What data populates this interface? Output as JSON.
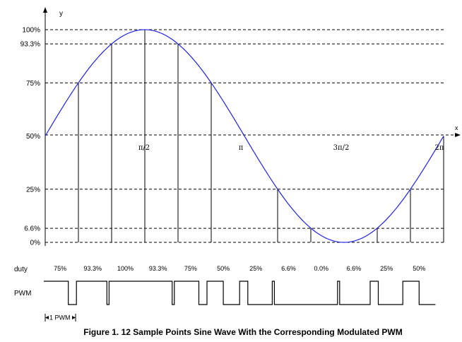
{
  "axes": {
    "y_label": "y",
    "x_label": "x"
  },
  "y_levels": [
    {
      "label": "100%",
      "value": 100
    },
    {
      "label": "93.3%",
      "value": 93.3
    },
    {
      "label": "75%",
      "value": 75
    },
    {
      "label": "50%",
      "value": 50
    },
    {
      "label": "25%",
      "value": 25
    },
    {
      "label": "6.6%",
      "value": 6.6
    },
    {
      "label": "0%",
      "value": 0
    }
  ],
  "x_ticks": [
    "π/2",
    "π",
    "3π/2",
    "2π"
  ],
  "duty_row": {
    "label": "duty",
    "values": [
      "75%",
      "93.3%",
      "100%",
      "93.3%",
      "75%",
      "50%",
      "25%",
      "6.6%",
      "0.0%",
      "6.6%",
      "25%",
      "50%"
    ]
  },
  "pwm_row": {
    "label": "PWM",
    "duty_fractions": [
      0.75,
      0.933,
      1.0,
      0.933,
      0.75,
      0.5,
      0.25,
      0.066,
      0.0,
      0.066,
      0.25,
      0.5
    ]
  },
  "period_marker": "1 PWM",
  "caption": "Figure 1. 12 Sample Points Sine Wave With the Corresponding Modulated PWM",
  "colors": {
    "sine": "#2222dd",
    "lines": "#000000"
  }
}
